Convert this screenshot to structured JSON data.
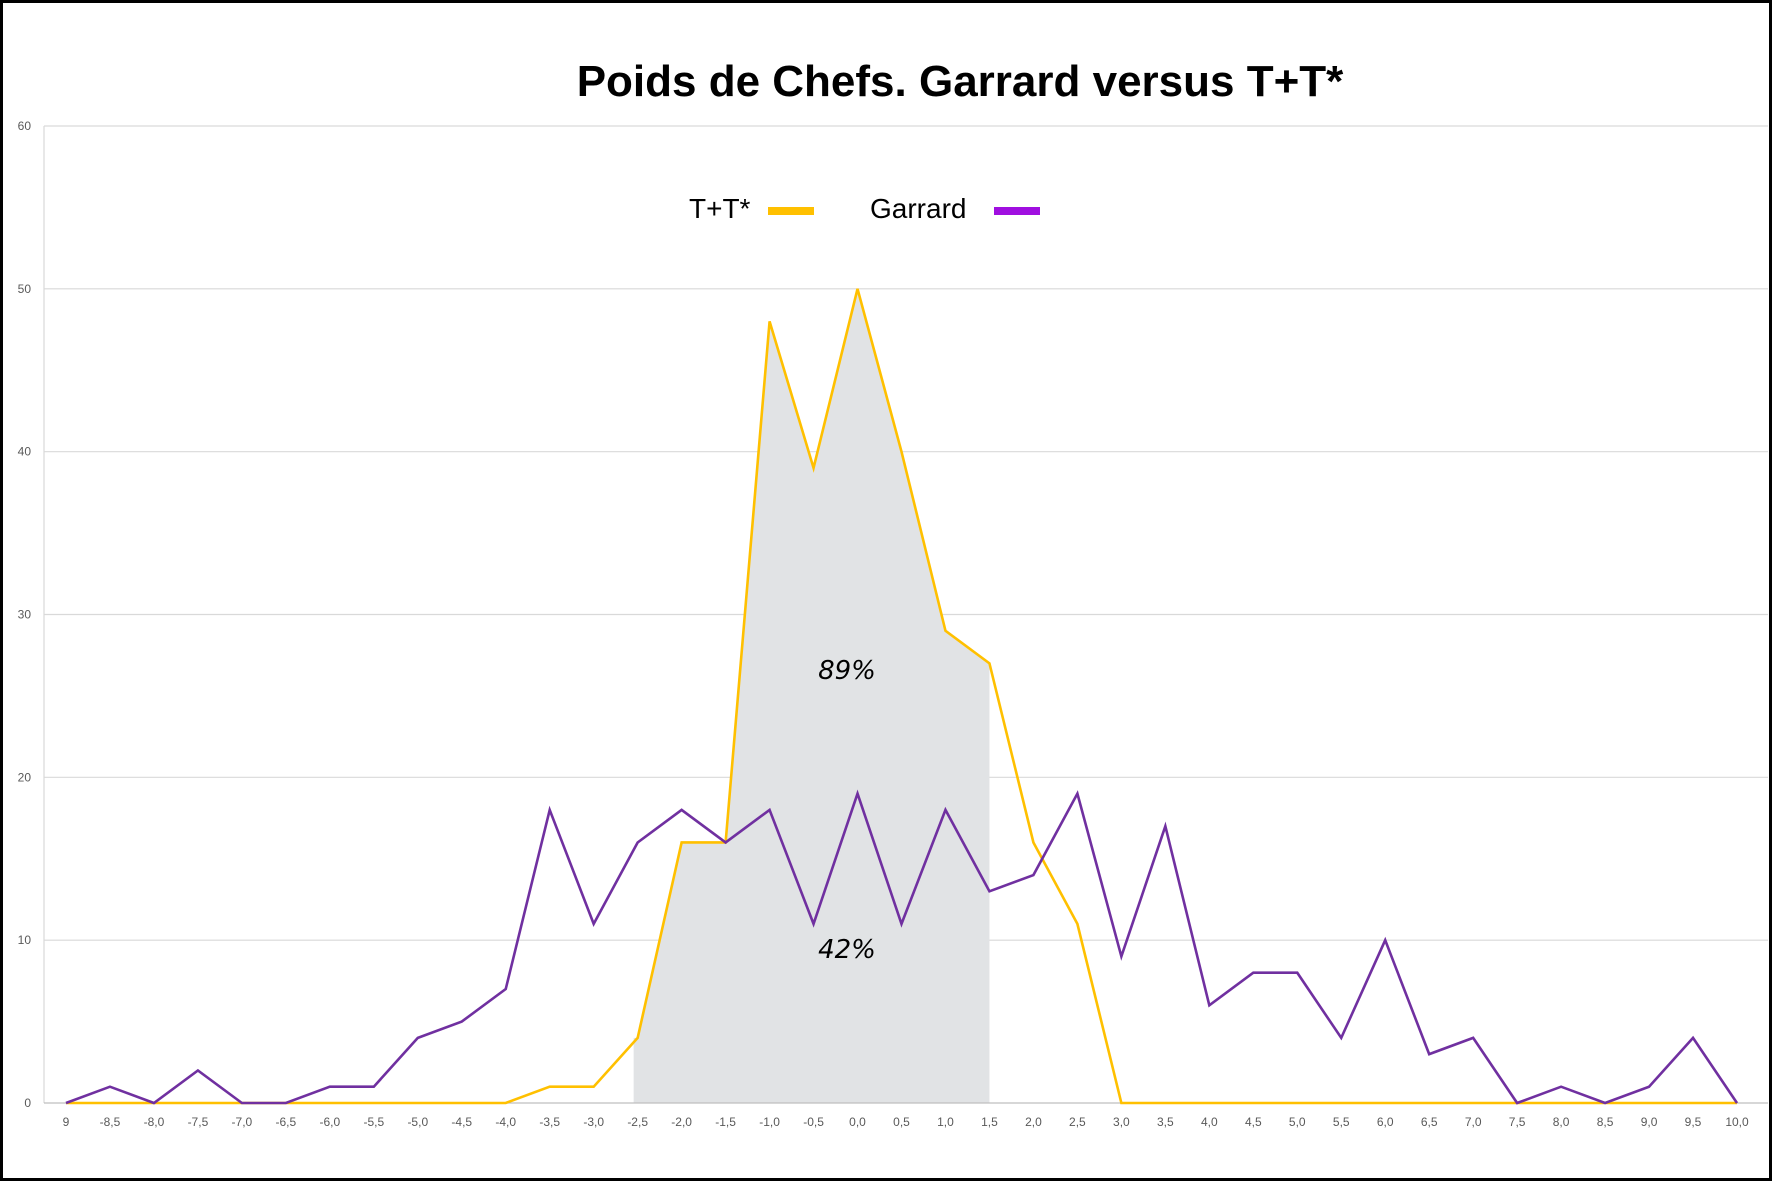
{
  "chart_data": {
    "type": "line",
    "title": "Poids de Chefs. Garrard versus T+T*",
    "xlabel": "",
    "ylabel": "",
    "ylim": [
      0,
      60
    ],
    "yticks": [
      "0",
      "10",
      "20",
      "30",
      "40",
      "50",
      "60"
    ],
    "categories": [
      "9",
      "-8,5",
      "-8,0",
      "-7,5",
      "-7,0",
      "-6,5",
      "-6,0",
      "-5,5",
      "-5,0",
      "-4,5",
      "-4,0",
      "-3,5",
      "-3,0",
      "-2,5",
      "-2,0",
      "-1,5",
      "-1,0",
      "-0,5",
      "0,0",
      "0,5",
      "1,0",
      "1,5",
      "2,0",
      "2,5",
      "3,0",
      "3,5",
      "4,0",
      "4,5",
      "5,0",
      "5,5",
      "6,0",
      "6,5",
      "7,0",
      "7,5",
      "8,0",
      "8,5",
      "9,0",
      "9,5",
      "10,0"
    ],
    "grid": true,
    "legend_position": "top-center",
    "series": [
      {
        "name": "T+T*",
        "color": "#FFC000",
        "values": [
          0,
          0,
          0,
          0,
          0,
          0,
          0,
          0,
          0,
          0,
          0,
          1,
          1,
          4,
          16,
          16,
          48,
          39,
          50,
          40,
          29,
          27,
          16,
          11,
          0,
          0,
          0,
          0,
          0,
          0,
          0,
          0,
          0,
          0,
          0,
          0,
          0,
          0,
          0
        ]
      },
      {
        "name": "Garrard",
        "color": "#7030A0",
        "values": [
          0,
          1,
          0,
          2,
          0,
          0,
          1,
          1,
          4,
          5,
          7,
          18,
          11,
          16,
          18,
          16,
          18,
          11,
          19,
          11,
          18,
          13,
          14,
          19,
          9,
          17,
          6,
          8,
          8,
          4,
          10,
          3,
          4,
          0,
          1,
          0,
          1,
          4,
          0
        ]
      }
    ],
    "shaded_region": {
      "from": "-2,5",
      "to": "1,5",
      "color": "#E1E3E5"
    },
    "annotations": [
      "89%",
      "42%"
    ]
  },
  "legend": [
    {
      "label": "T+T*",
      "color": "#FFC000",
      "swatch_color": "#FFC000"
    },
    {
      "label": "Garrard",
      "color": "#7030A0",
      "swatch_color": "#A00FE0"
    }
  ]
}
